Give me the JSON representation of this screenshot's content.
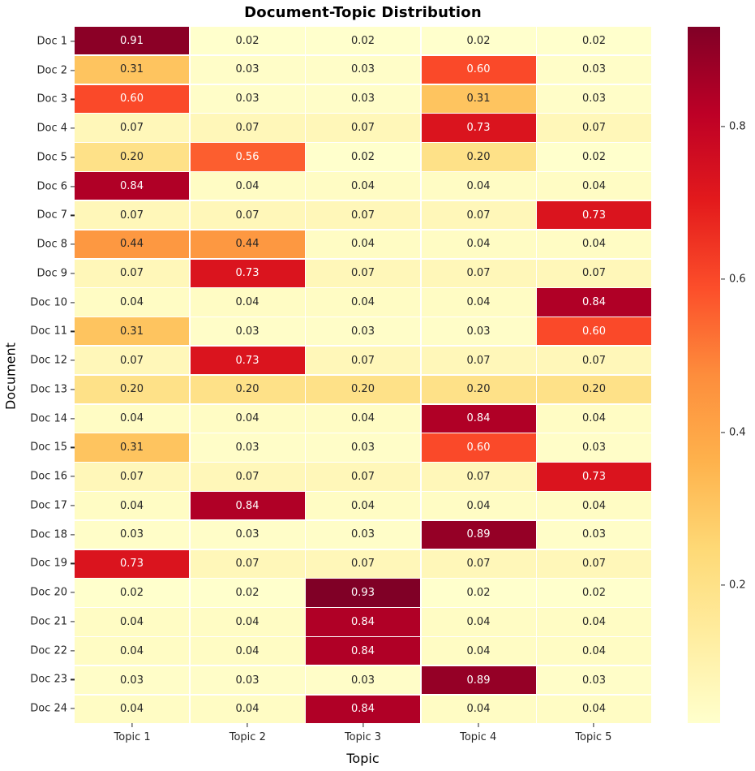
{
  "figure": {
    "background_color": "#ffffff",
    "title": "Document-Topic Distribution"
  },
  "chart_data": {
    "type": "heatmap",
    "title": "Document-Topic Distribution",
    "xlabel": "Topic",
    "ylabel": "Document",
    "columns": [
      "Topic 1",
      "Topic 2",
      "Topic 3",
      "Topic 4",
      "Topic 5"
    ],
    "rows": [
      "Doc 1",
      "Doc 2",
      "Doc 3",
      "Doc 4",
      "Doc 5",
      "Doc 6",
      "Doc 7",
      "Doc 8",
      "Doc 9",
      "Doc 10",
      "Doc 11",
      "Doc 12",
      "Doc 13",
      "Doc 14",
      "Doc 15",
      "Doc 16",
      "Doc 17",
      "Doc 18",
      "Doc 19",
      "Doc 20",
      "Doc 21",
      "Doc 22",
      "Doc 23",
      "Doc 24"
    ],
    "values": [
      [
        0.91,
        0.02,
        0.02,
        0.02,
        0.02
      ],
      [
        0.31,
        0.03,
        0.03,
        0.6,
        0.03
      ],
      [
        0.6,
        0.03,
        0.03,
        0.31,
        0.03
      ],
      [
        0.07,
        0.07,
        0.07,
        0.73,
        0.07
      ],
      [
        0.2,
        0.56,
        0.02,
        0.2,
        0.02
      ],
      [
        0.84,
        0.04,
        0.04,
        0.04,
        0.04
      ],
      [
        0.07,
        0.07,
        0.07,
        0.07,
        0.73
      ],
      [
        0.44,
        0.44,
        0.04,
        0.04,
        0.04
      ],
      [
        0.07,
        0.73,
        0.07,
        0.07,
        0.07
      ],
      [
        0.04,
        0.04,
        0.04,
        0.04,
        0.84
      ],
      [
        0.31,
        0.03,
        0.03,
        0.03,
        0.6
      ],
      [
        0.07,
        0.73,
        0.07,
        0.07,
        0.07
      ],
      [
        0.2,
        0.2,
        0.2,
        0.2,
        0.2
      ],
      [
        0.04,
        0.04,
        0.04,
        0.84,
        0.04
      ],
      [
        0.31,
        0.03,
        0.03,
        0.6,
        0.03
      ],
      [
        0.07,
        0.07,
        0.07,
        0.07,
        0.73
      ],
      [
        0.04,
        0.84,
        0.04,
        0.04,
        0.04
      ],
      [
        0.03,
        0.03,
        0.03,
        0.89,
        0.03
      ],
      [
        0.73,
        0.07,
        0.07,
        0.07,
        0.07
      ],
      [
        0.02,
        0.02,
        0.93,
        0.02,
        0.02
      ],
      [
        0.04,
        0.04,
        0.84,
        0.04,
        0.04
      ],
      [
        0.04,
        0.04,
        0.84,
        0.04,
        0.04
      ],
      [
        0.03,
        0.03,
        0.03,
        0.89,
        0.03
      ],
      [
        0.04,
        0.04,
        0.84,
        0.04,
        0.04
      ]
    ],
    "value_decimals": 2,
    "vmin": 0.02,
    "vmax": 0.93,
    "colormap_name": "YlOrRd",
    "colormap_stops": [
      "#ffffcc",
      "#ffeda0",
      "#fed976",
      "#feb24c",
      "#fd8d3c",
      "#fc4e2a",
      "#e31a1c",
      "#bd0026",
      "#800026"
    ],
    "annotation_dark_text_color": "#262626",
    "annotation_light_text_color": "#ffffff",
    "grid_line_color": "#ffffff",
    "colorbar_ticks": [
      "0.2",
      "0.4",
      "0.6",
      "0.8"
    ],
    "legend_position": "right-colorbar",
    "grid": "cell-borders-only"
  }
}
